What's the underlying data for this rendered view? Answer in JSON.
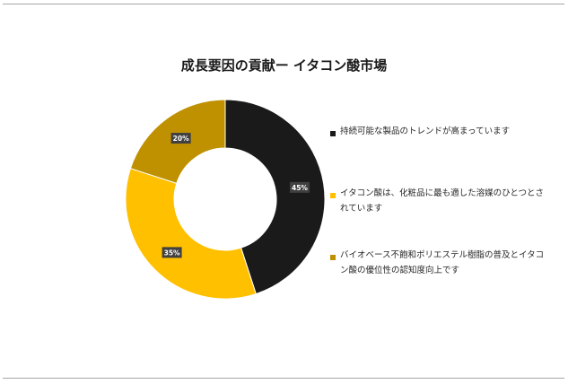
{
  "chart_data": {
    "type": "pie",
    "title": "成長要因の貢献ー イタコン酸市場",
    "categories": [
      "持続可能な製品のトレンドが高まっています",
      "イタコン酸は、化粧品に最も適した溶媒のひとつとされています",
      "バイオベース不飽和ポリエステル樹脂の普及とイタコン酸の優位性の認知度向上です"
    ],
    "values": [
      45,
      35,
      20
    ],
    "data_labels": [
      "45%",
      "35%",
      "20%"
    ],
    "colors": [
      "#1a1a1a",
      "#ffc000",
      "#bf9000"
    ],
    "legend_position": "right",
    "donut": true
  }
}
